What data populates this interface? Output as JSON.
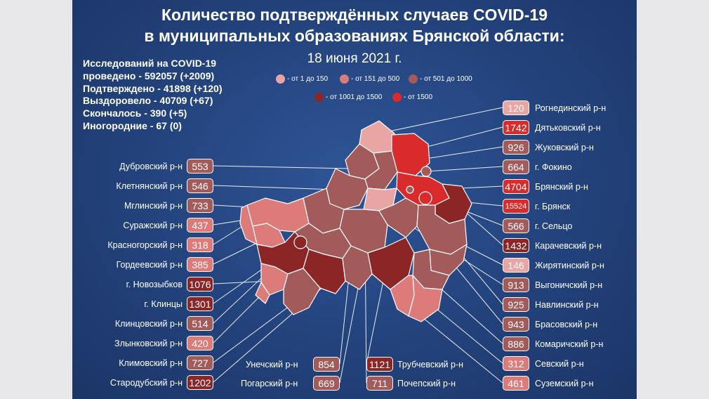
{
  "title_line1": "Количество подтверждённых случаев COVID-19",
  "title_line2": "в муниципальных образованиях Брянской области:",
  "date": "18 июня 2021 г.",
  "stats": [
    "Исследований на COVID-19",
    "проведено - 592057 (+2009)",
    "Подтверждено - 41898 (+120)",
    "Выздоровело - 40709 (+67)",
    "Скончалось - 390 (+5)",
    "Иногородние - 67 (0)"
  ],
  "legend": [
    {
      "label": "- от 1 до 150",
      "color": "#e9a4a4"
    },
    {
      "label": "- от 151 до 500",
      "color": "#dd7b7b"
    },
    {
      "label": "- от 501 до 1000",
      "color": "#a35a5a"
    },
    {
      "label": "- от 1001 до 1500",
      "color": "#8c2626"
    },
    {
      "label": "- от 1500",
      "color": "#d92b2b"
    }
  ],
  "left": [
    {
      "name": "Дубровский р-н",
      "value": "553",
      "color": "#a35a5a"
    },
    {
      "name": "Клетнянский р-н",
      "value": "546",
      "color": "#a35a5a"
    },
    {
      "name": "Мглинский р-н",
      "value": "733",
      "color": "#a35a5a"
    },
    {
      "name": "Суражский р-н",
      "value": "437",
      "color": "#dd7b7b"
    },
    {
      "name": "Красногорский р-н",
      "value": "318",
      "color": "#dd7b7b"
    },
    {
      "name": "Гордеевский р-н",
      "value": "385",
      "color": "#dd7b7b"
    },
    {
      "name": "г. Новозыбков",
      "value": "1076",
      "color": "#8c2626"
    },
    {
      "name": "г. Клинцы",
      "value": "1301",
      "color": "#8c2626"
    },
    {
      "name": "Клинцовский р-н",
      "value": "514",
      "color": "#a35a5a"
    },
    {
      "name": "Злынковский р-н",
      "value": "420",
      "color": "#dd7b7b"
    },
    {
      "name": "Климовский  р-н",
      "value": "727",
      "color": "#a35a5a"
    },
    {
      "name": "Стародубский р-н",
      "value": "1202",
      "color": "#8c2626"
    }
  ],
  "right": [
    {
      "name": "Рогнединский р-н",
      "value": "120",
      "color": "#e9a4a4"
    },
    {
      "name": "Дятьковский р-н",
      "value": "1742",
      "color": "#d92b2b"
    },
    {
      "name": "Жуковский р-н",
      "value": "926",
      "color": "#a35a5a"
    },
    {
      "name": "г. Фокино",
      "value": "664",
      "color": "#a35a5a"
    },
    {
      "name": "Брянский р-н",
      "value": "4704",
      "color": "#d92b2b"
    },
    {
      "name": "г. Брянск",
      "value": "15524",
      "color": "#d92b2b"
    },
    {
      "name": "г. Сельцо",
      "value": "566",
      "color": "#a35a5a"
    },
    {
      "name": "Карачевский р-н",
      "value": "1432",
      "color": "#8c2626"
    },
    {
      "name": "Жирятинский р-н",
      "value": "146",
      "color": "#e9a4a4"
    },
    {
      "name": "Выгоничский р-н",
      "value": "913",
      "color": "#a35a5a"
    },
    {
      "name": "Навлинский р-н",
      "value": "925",
      "color": "#a35a5a"
    },
    {
      "name": "Брасовский р-н",
      "value": "943",
      "color": "#a35a5a"
    },
    {
      "name": "Комаричский р-н",
      "value": "886",
      "color": "#a35a5a"
    },
    {
      "name": "Севский р-н",
      "value": "312",
      "color": "#dd7b7b"
    },
    {
      "name": "Суземский р-н",
      "value": "461",
      "color": "#dd7b7b"
    }
  ],
  "bottom": [
    {
      "name": "Унечский р-н",
      "value": "854",
      "color": "#a35a5a"
    },
    {
      "name": "Трубчевский р-н",
      "value": "1121",
      "color": "#8c2626"
    },
    {
      "name": "Погарский р-н",
      "value": "669",
      "color": "#a35a5a"
    },
    {
      "name": "Почепский р-н",
      "value": "711",
      "color": "#a35a5a"
    }
  ]
}
